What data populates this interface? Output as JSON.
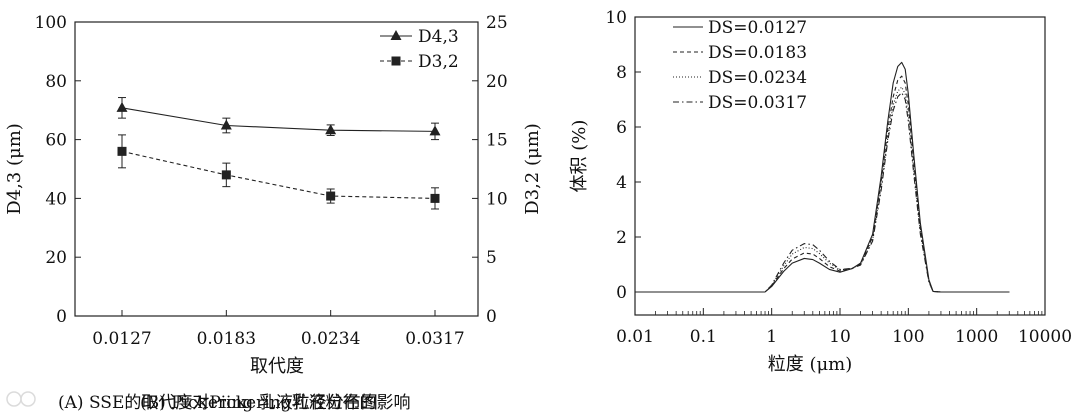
{
  "captions": {
    "a": "(A) SSE的取代度对Pickering乳液粒径的影响",
    "b": "(B) Pickering 乳液粒径分布图"
  },
  "chart_data": [
    {
      "type": "line",
      "xlabel": "取代度",
      "ylabel_left": "D4,3 (μm)",
      "ylabel_right": "D3,2 (μm)",
      "categories": [
        "0.0127",
        "0.0183",
        "0.0234",
        "0.0317"
      ],
      "ylim_left": [
        0,
        100
      ],
      "yticks_left": [
        0,
        20,
        40,
        60,
        80,
        100
      ],
      "ylim_right": [
        0,
        25
      ],
      "yticks_right": [
        0,
        5,
        10,
        15,
        20,
        25
      ],
      "legend_position": "top-right",
      "grid": false,
      "series": [
        {
          "name": "D4,3",
          "axis": "left",
          "marker": "triangle",
          "line": "solid",
          "values": [
            70.8,
            64.8,
            63.2,
            62.8
          ],
          "errors": [
            3.5,
            2.5,
            1.8,
            2.8
          ]
        },
        {
          "name": "D3,2",
          "axis": "right",
          "marker": "square",
          "line": "dashed",
          "values": [
            14.0,
            12.0,
            10.2,
            10.0
          ],
          "errors": [
            1.4,
            1.0,
            0.6,
            0.9
          ]
        }
      ]
    },
    {
      "type": "line",
      "xlabel": "粒度 (μm)",
      "ylabel": "体积 (%)",
      "x_scale": "log",
      "xlim": [
        0.01,
        10000
      ],
      "xticks": [
        "0.01",
        "0.1",
        "1",
        "10",
        "100",
        "1000",
        "10000"
      ],
      "ylim": [
        0,
        10
      ],
      "yticks": [
        0,
        2,
        4,
        6,
        8,
        10
      ],
      "legend_position": "top-left",
      "grid": false,
      "series": [
        {
          "name": "DS=0.0127",
          "line": "solid",
          "x": [
            0.01,
            0.3,
            0.8,
            1,
            1.5,
            2,
            3,
            4,
            5,
            7,
            10,
            15,
            20,
            30,
            40,
            50,
            60,
            70,
            80,
            90,
            100,
            120,
            150,
            200,
            230,
            300,
            1000,
            3000
          ],
          "y": [
            0,
            0,
            0,
            0.2,
            0.75,
            1.05,
            1.22,
            1.18,
            1.05,
            0.82,
            0.72,
            0.85,
            1.05,
            2.1,
            4.2,
            6.2,
            7.6,
            8.2,
            8.35,
            8.1,
            7.2,
            5.0,
            2.5,
            0.45,
            0.02,
            0,
            0,
            0
          ]
        },
        {
          "name": "DS=0.0183",
          "line": "dashed",
          "x": [
            0.01,
            0.3,
            0.8,
            1,
            1.5,
            2,
            3,
            4,
            5,
            7,
            10,
            15,
            20,
            30,
            40,
            50,
            60,
            70,
            80,
            90,
            100,
            120,
            150,
            200,
            230,
            300,
            1000,
            3000
          ],
          "y": [
            0,
            0,
            0,
            0.22,
            0.85,
            1.2,
            1.42,
            1.38,
            1.22,
            0.92,
            0.76,
            0.85,
            1.02,
            2.0,
            4.0,
            5.9,
            7.1,
            7.7,
            7.85,
            7.6,
            6.8,
            4.7,
            2.3,
            0.4,
            0.02,
            0,
            0,
            0
          ]
        },
        {
          "name": "DS=0.0234",
          "line": "dotted",
          "x": [
            0.01,
            0.3,
            0.8,
            1,
            1.5,
            2,
            3,
            4,
            5,
            7,
            10,
            15,
            20,
            30,
            40,
            50,
            60,
            70,
            80,
            90,
            100,
            120,
            150,
            200,
            230,
            300,
            1000,
            3000
          ],
          "y": [
            0,
            0,
            0,
            0.24,
            0.95,
            1.38,
            1.62,
            1.58,
            1.4,
            1.05,
            0.8,
            0.86,
            1.0,
            1.9,
            3.8,
            5.6,
            6.8,
            7.3,
            7.45,
            7.2,
            6.4,
            4.4,
            2.2,
            0.38,
            0.02,
            0,
            0,
            0
          ]
        },
        {
          "name": "DS=0.0317",
          "line": "dashdot",
          "x": [
            0.01,
            0.3,
            0.8,
            1,
            1.5,
            2,
            3,
            4,
            5,
            7,
            10,
            15,
            20,
            30,
            40,
            50,
            60,
            70,
            80,
            90,
            100,
            120,
            150,
            200,
            230,
            300,
            1000,
            3000
          ],
          "y": [
            0,
            0,
            0,
            0.25,
            1.05,
            1.52,
            1.76,
            1.72,
            1.52,
            1.12,
            0.82,
            0.86,
            0.98,
            1.85,
            3.7,
            5.5,
            6.6,
            7.1,
            7.25,
            7.0,
            6.2,
            4.3,
            2.1,
            0.36,
            0.02,
            0,
            0,
            0
          ]
        }
      ]
    }
  ]
}
